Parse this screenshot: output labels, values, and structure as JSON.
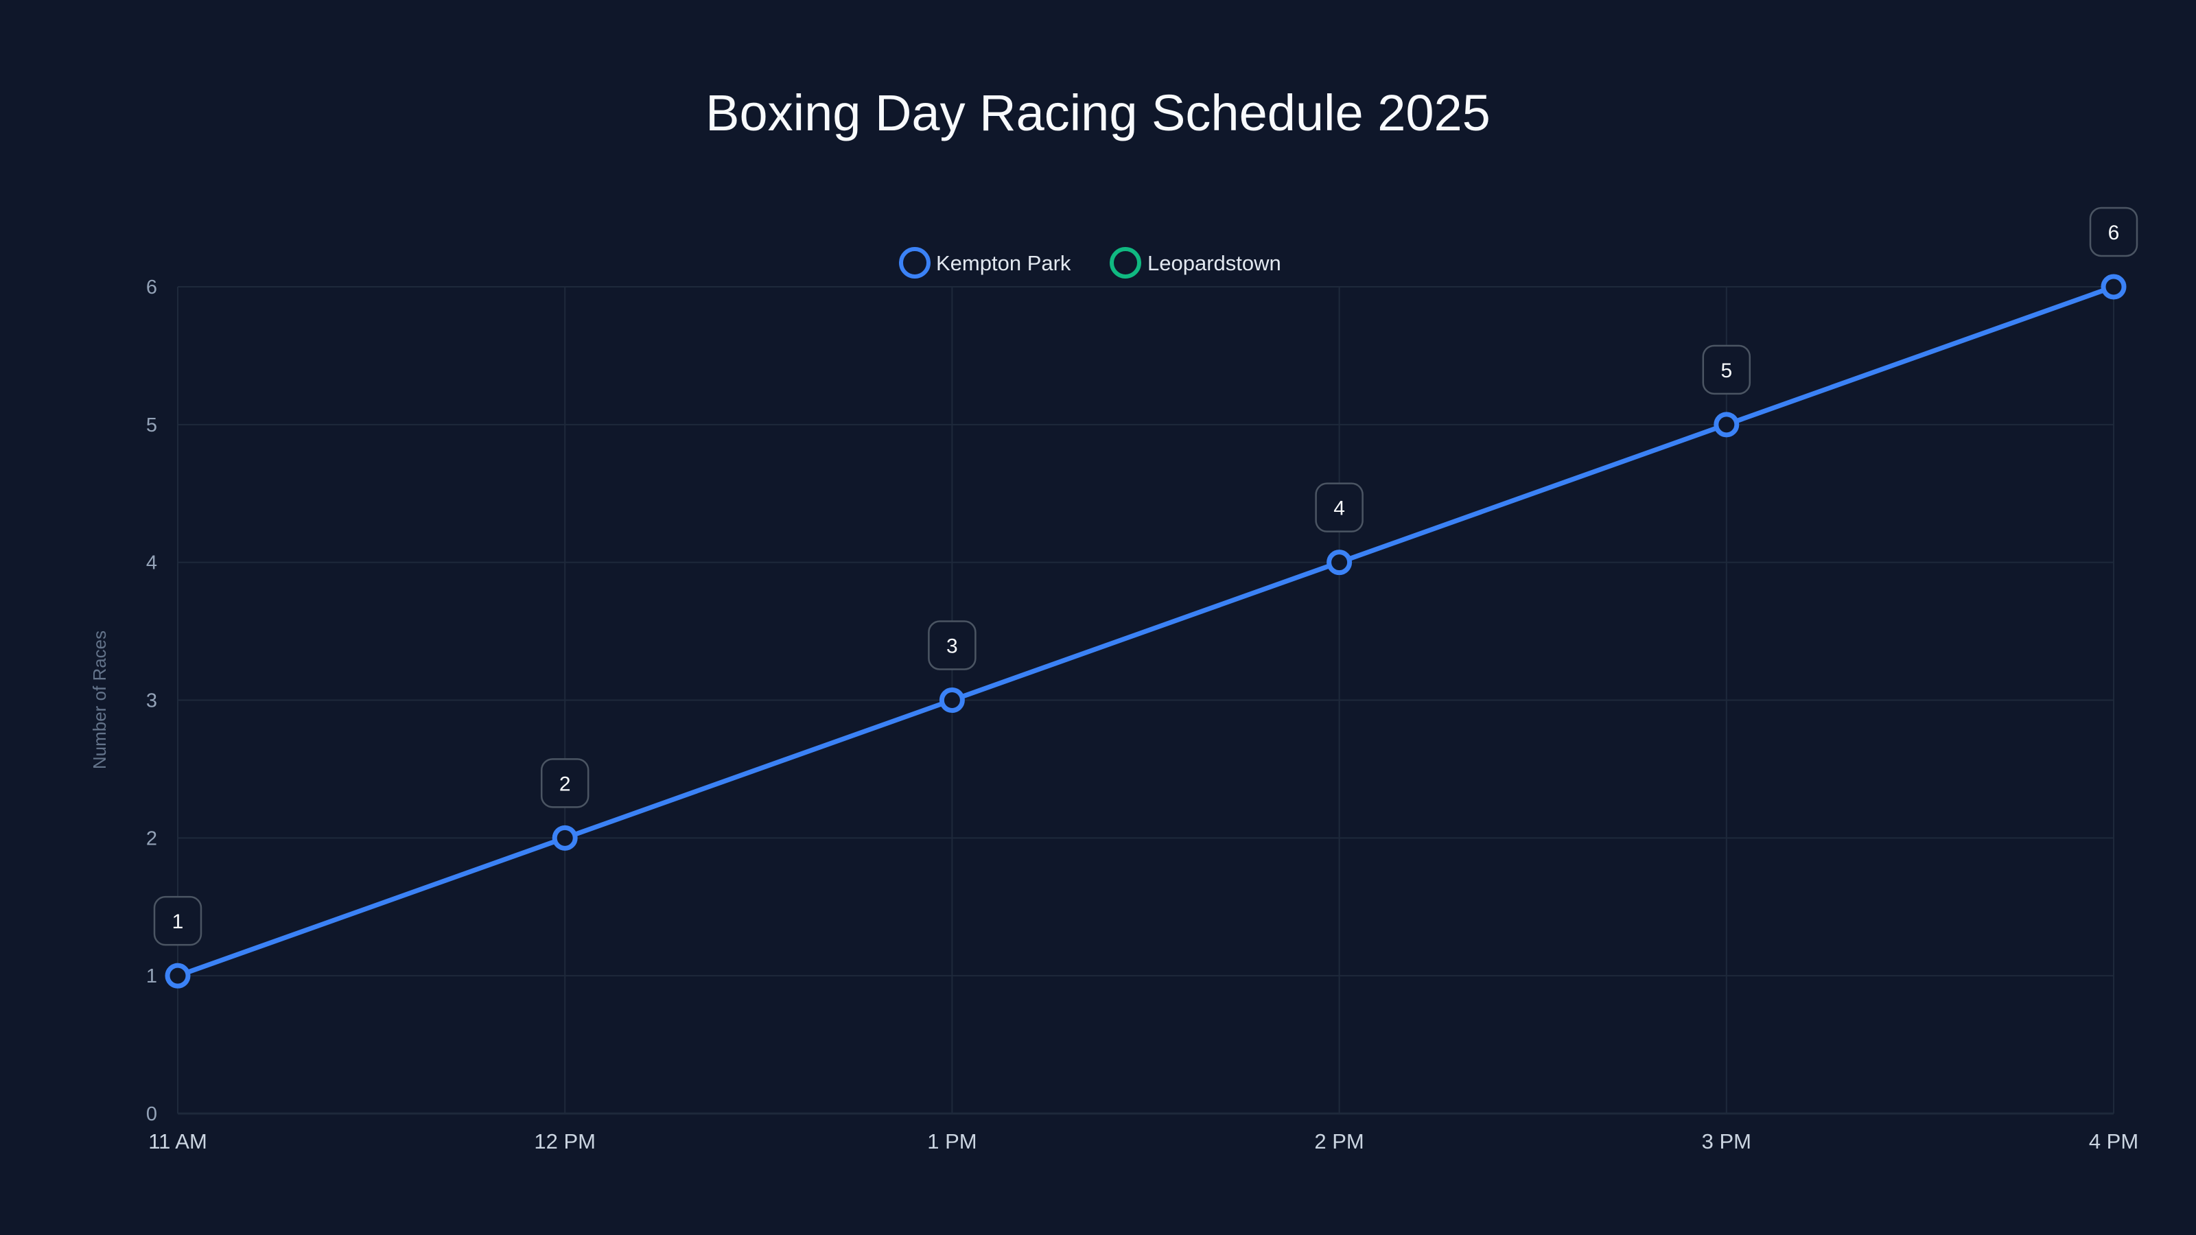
{
  "chart_data": {
    "type": "line",
    "title": "Boxing Day Racing Schedule 2025",
    "xlabel": "",
    "ylabel": "Number of Races",
    "categories": [
      "11 AM",
      "12 PM",
      "1 PM",
      "2 PM",
      "3 PM",
      "4 PM"
    ],
    "series": [
      {
        "name": "Kempton Park",
        "color": "#3b82f6",
        "values": [
          1,
          2,
          3,
          4,
          5,
          6
        ],
        "data_labels": [
          "1",
          "2",
          "3",
          "4",
          "5",
          "6"
        ]
      },
      {
        "name": "Leopardstown",
        "color": "#10b981",
        "values": []
      }
    ],
    "ylim": [
      0,
      6
    ],
    "yticks": [
      "0",
      "1",
      "2",
      "3",
      "4",
      "5",
      "6"
    ],
    "grid": true,
    "legend_position": "top-center"
  },
  "colors": {
    "background": "#0f172a",
    "grid": "#1e293b",
    "kempton": "#3b82f6",
    "leopardstown": "#10b981"
  }
}
